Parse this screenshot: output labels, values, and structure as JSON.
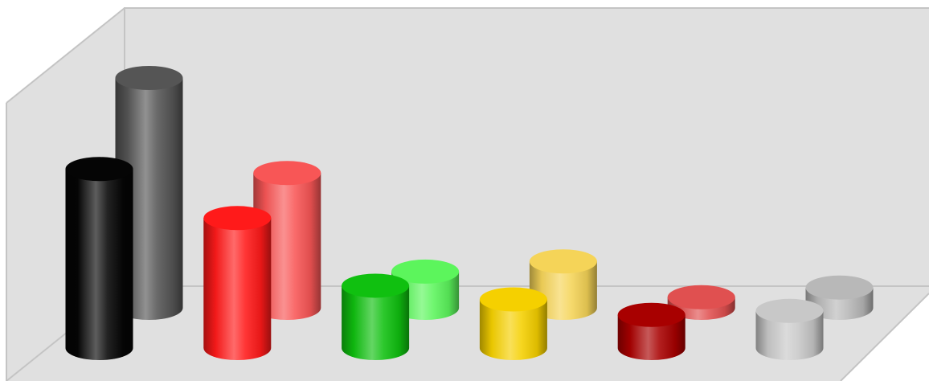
{
  "chart_data": {
    "type": "bar",
    "style": "3d-cylinder",
    "categories": [
      "",
      "",
      "",
      "",
      "",
      ""
    ],
    "series": [
      {
        "values": [
          40.5,
          29.4,
          14.1,
          11.0,
          7.5,
          8.4
        ],
        "colors": [
          "#050505",
          "#ff1a1a",
          "#10c010",
          "#f5d000",
          "#a80000",
          "#c8c8c8"
        ]
      },
      {
        "values": [
          52.0,
          30.5,
          8.2,
          10.5,
          2.4,
          4.6
        ],
        "colors": [
          "#555555",
          "#f85656",
          "#5cf55c",
          "#f5d458",
          "#e05050",
          "#b8b8b8"
        ]
      }
    ],
    "ylim": [
      0,
      60
    ],
    "grid": false,
    "legend": "none",
    "background_color": "#e0e0e0",
    "frame_color": "#c4c4c4"
  }
}
